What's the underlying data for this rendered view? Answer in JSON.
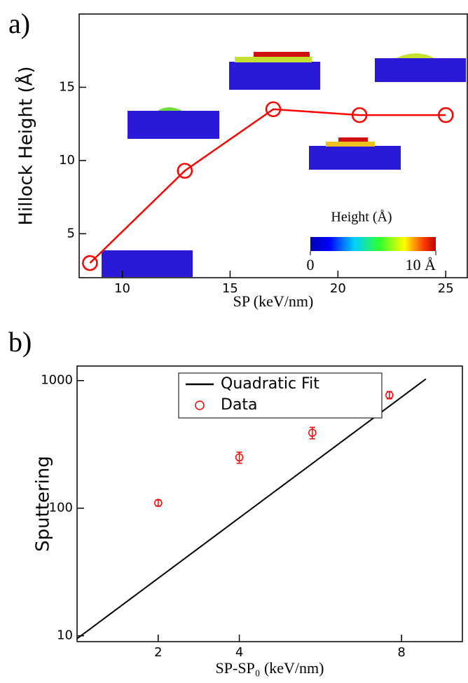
{
  "chart_data": [
    {
      "type": "line",
      "panel_label": "a)",
      "xlabel": "SP (keV/nm)",
      "ylabel": "Hillock Height (Å)",
      "xlim": [
        8,
        26
      ],
      "ylim": [
        2,
        20
      ],
      "xticks": [
        10,
        15,
        20,
        25
      ],
      "yticks": [
        5,
        10,
        15
      ],
      "series": [
        {
          "color": "#ff0000",
          "x": [
            8.5,
            12.9,
            17,
            21,
            25
          ],
          "values": [
            3,
            9.3,
            13.5,
            13.1,
            13.1
          ]
        }
      ],
      "colorbar": {
        "label": "Height (Å)",
        "lim": [
          0,
          10
        ],
        "ticks": [
          0,
          {
            "value": 10,
            "label": "10 Å"
          }
        ]
      }
    },
    {
      "type": "scatter",
      "panel_label": "b)",
      "xlabel": "SP-SP₀ (keV/nm)",
      "ylabel": "Sputtering",
      "log_y": true,
      "xlim": [
        0,
        9.5
      ],
      "ylim": [
        9,
        1300
      ],
      "xticks": [
        2,
        4,
        8
      ],
      "yticks": [
        10,
        100,
        1000
      ],
      "legend": "upper center",
      "series": [
        {
          "name": "Quadratic Fit",
          "color": "#000000",
          "x": [
            0,
            8.6
          ],
          "values": [
            9.5,
            1030
          ]
        },
        {
          "name": "Data",
          "color": "#ff0000",
          "x": [
            2,
            4,
            5.8,
            7.7
          ],
          "values": [
            110,
            250,
            390,
            770
          ],
          "errors": [
            6,
            25,
            40,
            50
          ]
        }
      ]
    }
  ]
}
